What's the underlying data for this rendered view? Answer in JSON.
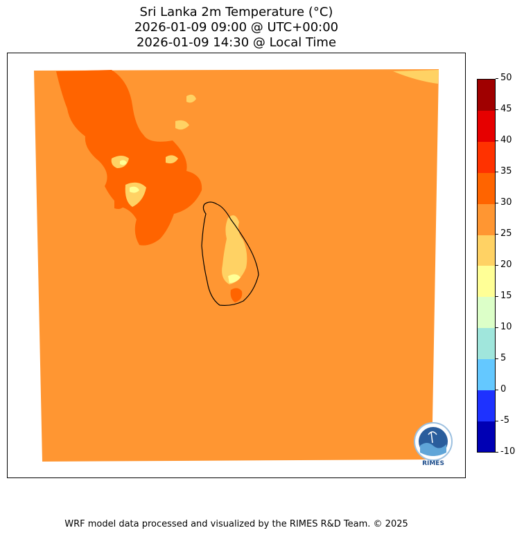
{
  "title": {
    "line1": "Sri Lanka 2m Temperature (°C)",
    "line2": "2026-01-09 09:00 @ UTC+00:00",
    "line3": "2026-01-09 14:30 @ Local Time"
  },
  "colorbar": {
    "levels": [
      -10,
      -5,
      0,
      5,
      10,
      15,
      20,
      25,
      30,
      35,
      40,
      45,
      50
    ],
    "labels": [
      "-10",
      "-5",
      "0",
      "5",
      "10",
      "15",
      "20",
      "25",
      "30",
      "35",
      "40",
      "45",
      "50"
    ],
    "colors": [
      "#0000b4",
      "#1e32ff",
      "#64c8ff",
      "#a0e6dc",
      "#dcffc8",
      "#ffff96",
      "#ffd264",
      "#ff9632",
      "#ff6400",
      "#ff3200",
      "#e60000",
      "#a00000"
    ]
  },
  "map": {
    "dominant_range_c": "25-30",
    "warm_range_c": "30-35",
    "cool_range_c": "20-25",
    "coolest_range_c": "15-20"
  },
  "logo": {
    "text": "RIMES"
  },
  "footer": "WRF model data processed and visualized by the RIMES R&D Team. © 2025"
}
